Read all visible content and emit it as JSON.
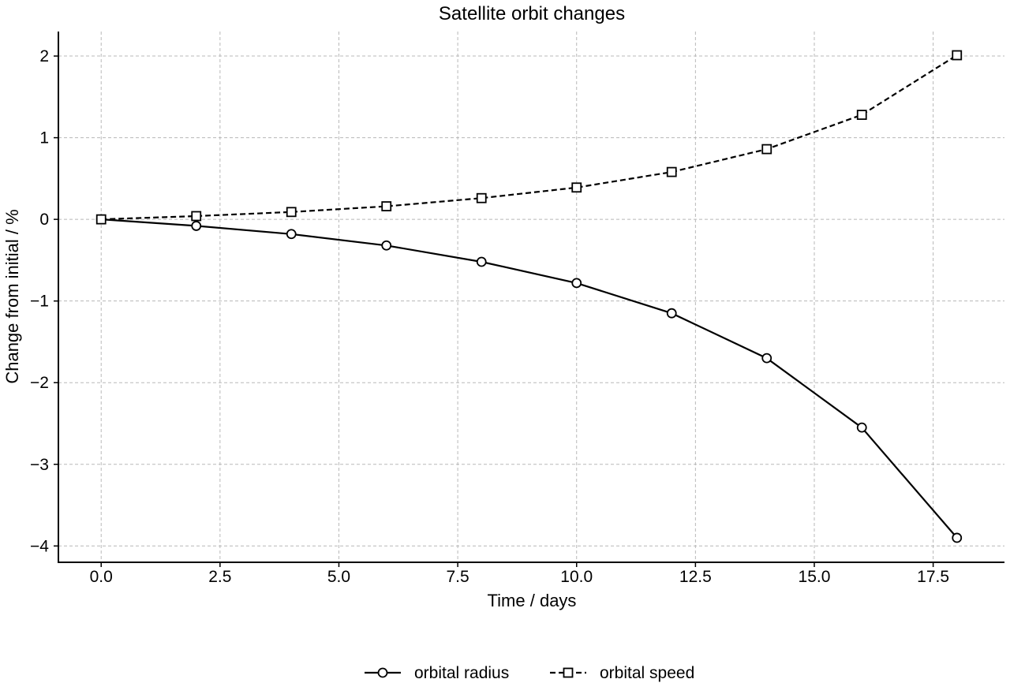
{
  "chart_data": {
    "type": "line",
    "title": "Satellite orbit changes",
    "xlabel": "Time / days",
    "ylabel": "Change from initial / %",
    "xlim": [
      -0.9,
      19.0
    ],
    "ylim": [
      -4.2,
      2.3
    ],
    "xticks": [
      0.0,
      2.5,
      5.0,
      7.5,
      10.0,
      12.5,
      15.0,
      17.5
    ],
    "xtick_labels": [
      "0.0",
      "2.5",
      "5.0",
      "7.5",
      "10.0",
      "12.5",
      "15.0",
      "17.5"
    ],
    "yticks": [
      2,
      1,
      0,
      -1,
      -2,
      -3,
      -4
    ],
    "ytick_labels": [
      "2",
      "1",
      "0",
      "−1",
      "−2",
      "−3",
      "−4"
    ],
    "grid": true,
    "legend_position": "bottom-center",
    "x": [
      0,
      2,
      4,
      6,
      8,
      10,
      12,
      14,
      16,
      18
    ],
    "series": [
      {
        "name": "orbital radius",
        "marker": "circle",
        "line_style": "solid",
        "color": "#000000",
        "values": [
          0.0,
          -0.08,
          -0.18,
          -0.32,
          -0.52,
          -0.78,
          -1.15,
          -1.7,
          -2.55,
          -3.9
        ]
      },
      {
        "name": "orbital speed",
        "marker": "square",
        "line_style": "dashed",
        "color": "#000000",
        "values": [
          0.0,
          0.04,
          0.09,
          0.16,
          0.26,
          0.39,
          0.58,
          0.86,
          1.28,
          2.01
        ]
      }
    ]
  }
}
